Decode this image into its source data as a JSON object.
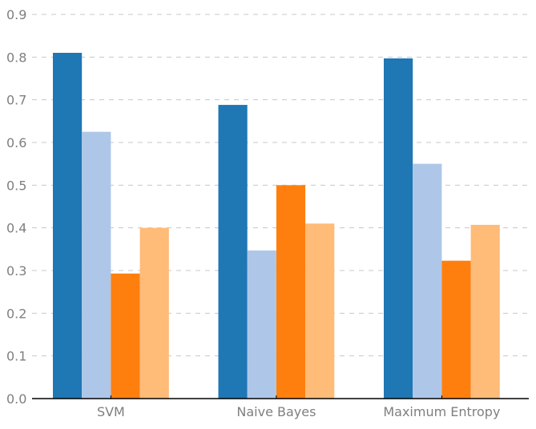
{
  "chart_data": {
    "type": "bar",
    "title": "",
    "xlabel": "",
    "ylabel": "",
    "categories": [
      "SVM",
      "Naive Bayes",
      "Maximum Entropy"
    ],
    "ylim": [
      0,
      0.9
    ],
    "yticks": [
      "0.0",
      "0.1",
      "0.2",
      "0.3",
      "0.4",
      "0.5",
      "0.6",
      "0.7",
      "0.8",
      "0.9"
    ],
    "grid": true,
    "legend": "none",
    "series": [
      {
        "color": "#1f77b4",
        "values": [
          0.81,
          0.688,
          0.797
        ]
      },
      {
        "color": "#aec7e8",
        "values": [
          0.625,
          0.347,
          0.55
        ]
      },
      {
        "color": "#ff7f0e",
        "values": [
          0.293,
          0.5,
          0.323
        ]
      },
      {
        "color": "#ffbb78",
        "values": [
          0.4,
          0.41,
          0.407
        ]
      }
    ]
  }
}
